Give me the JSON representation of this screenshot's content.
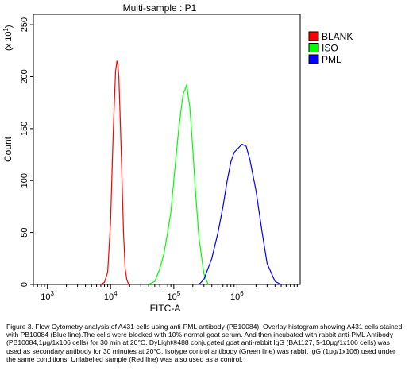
{
  "chart_data": {
    "type": "line",
    "title": "Multi-sample : P1",
    "xlabel": "FITC-A",
    "ylabel": "Count",
    "y_multiplier": "(x 10",
    "y_multiplier_exp": "1",
    "x_scale": "log",
    "xlim": [
      600,
      10000000
    ],
    "ylim": [
      0,
      260
    ],
    "y_ticks": [
      0,
      50,
      100,
      150,
      200,
      250
    ],
    "x_tick_labels": [
      {
        "base": "10",
        "exp": "3",
        "value": 1000
      },
      {
        "base": "10",
        "exp": "4",
        "value": 10000
      },
      {
        "base": "10",
        "exp": "5",
        "value": 100000
      },
      {
        "base": "10",
        "exp": "6",
        "value": 1000000
      }
    ],
    "grid": false,
    "legend": "top-right",
    "series": [
      {
        "name": "BLANK",
        "color": "#ff0000",
        "x": [
          7000,
          8000,
          9000,
          10000,
          11000,
          12000,
          12600,
          13000,
          13500,
          14000,
          15000,
          16000,
          17000,
          18000,
          19000,
          20000
        ],
        "y": [
          0,
          2,
          12,
          60,
          145,
          205,
          215,
          212,
          200,
          170,
          110,
          50,
          15,
          5,
          1,
          0
        ]
      },
      {
        "name": "ISO",
        "color": "#00ff00",
        "x": [
          40000,
          50000,
          60000,
          70000,
          80000,
          90000,
          100000,
          120000,
          140000,
          160000,
          180000,
          200000,
          220000,
          250000,
          300000,
          350000
        ],
        "y": [
          0,
          3,
          15,
          30,
          50,
          70,
          100,
          150,
          183,
          192,
          170,
          130,
          90,
          45,
          10,
          0
        ]
      },
      {
        "name": "PML",
        "color": "#0000ff",
        "x": [
          250000,
          300000,
          400000,
          500000,
          600000,
          700000,
          800000,
          900000,
          1000000,
          1200000,
          1400000,
          1600000,
          2000000,
          2500000,
          3000000,
          4000000,
          5000000
        ],
        "y": [
          0,
          5,
          25,
          50,
          75,
          100,
          118,
          127,
          130,
          135,
          133,
          120,
          90,
          50,
          20,
          3,
          0
        ]
      }
    ]
  },
  "caption": "Figure 3. Flow Cytometry analysis of A431 cells using anti-PML antibody (PB10084).  Overlay histogram showing A431 cells stained with PB10084 (Blue line).The cells were blocked with 10% normal goat serum.  And then incubated with rabbit anti-PML Antibody (PB10084,1μg/1x106 cells) for 30 min at 20°C. DyLight®488 conjugated goat anti-rabbit IgG (BA1127, 5-10μg/1x106 cells) was used as secondary antibody for 30 minutes at 20°C. Isotype control antibody (Green line) was rabbit IgG (1μg/1x106) used under the same conditions. Unlabelled sample (Red line) was also used as a control."
}
